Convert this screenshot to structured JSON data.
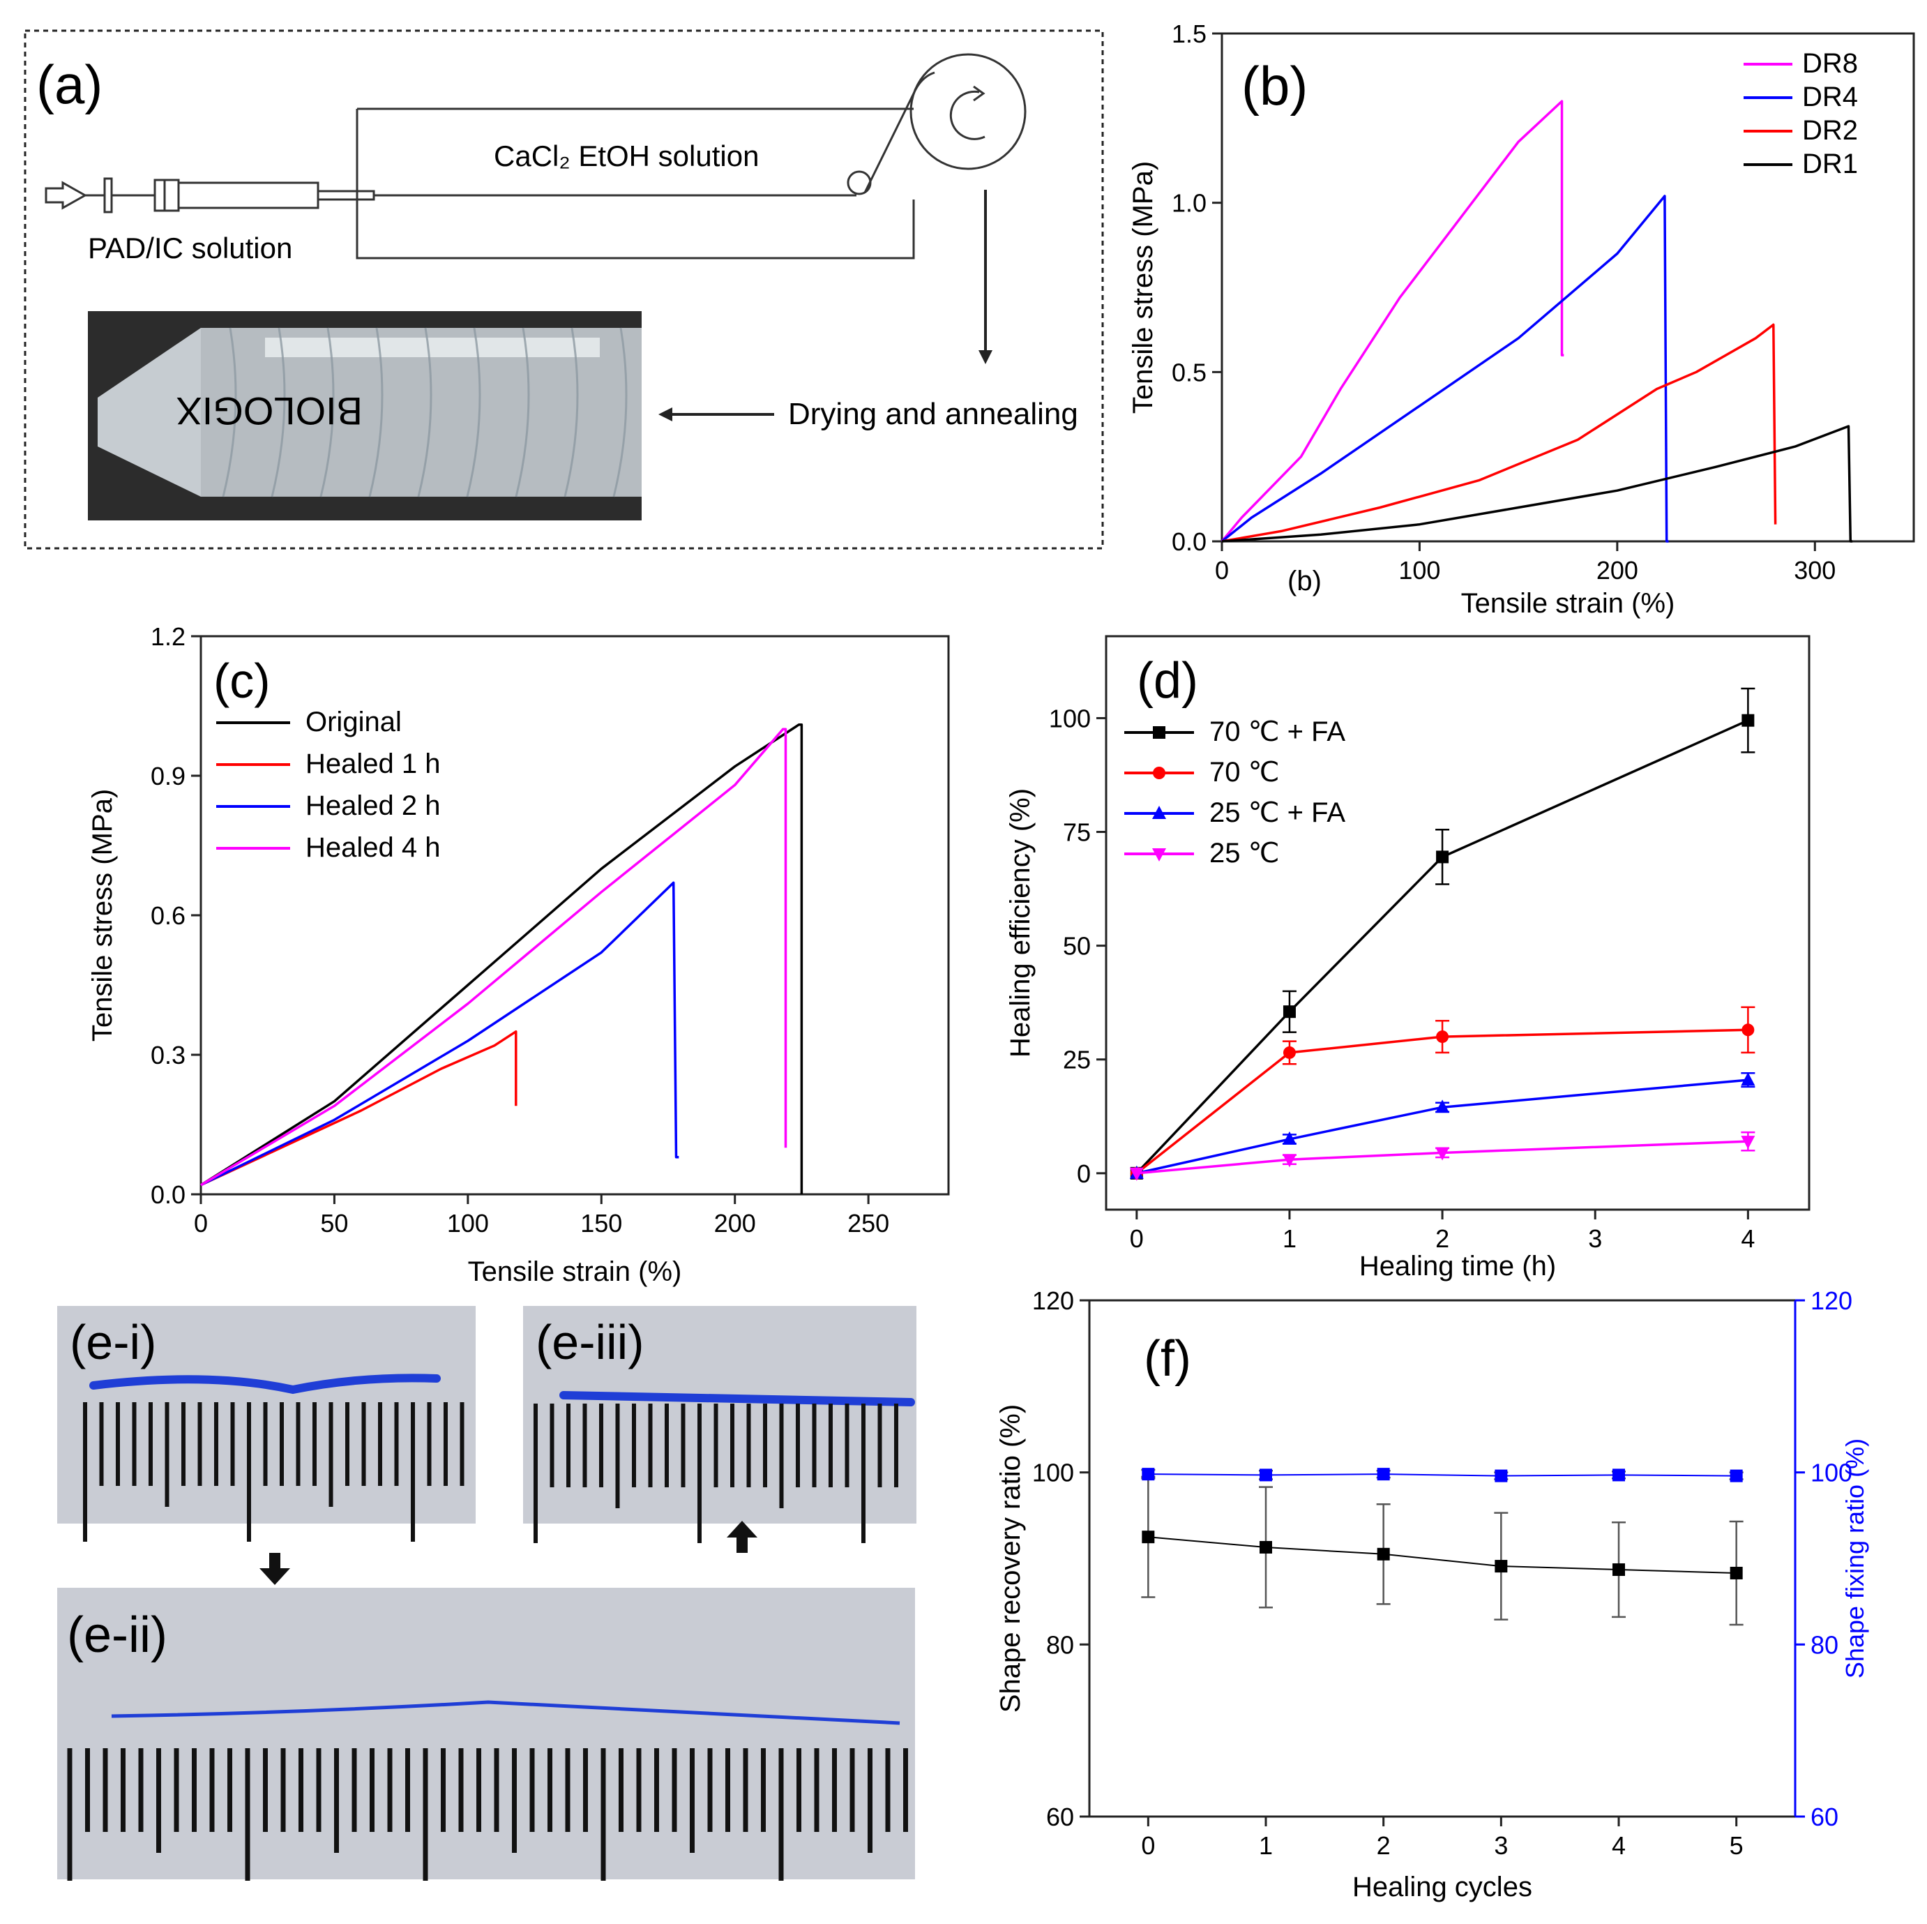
{
  "figure": {
    "background": "#ffffff"
  },
  "panel_a": {
    "label": "(a)",
    "bath_solution": "CaCl₂ EtOH solution",
    "syringe_solution": "PAD/IC solution",
    "step": "Drying and annealing",
    "photo_text": "BIOLOGIX",
    "colors": {
      "line": "#222222",
      "photo_bg": "#2c2c2c",
      "tube": "#cfd6dc"
    }
  },
  "panel_e": {
    "labels": [
      "(e-i)",
      "(e-iii)",
      "(e-ii)"
    ],
    "colors": {
      "fiber": "#1f3ed6",
      "background": "#c9ccd4",
      "ruler": "#111111"
    }
  },
  "chart_data": [
    {
      "id": "b",
      "type": "line",
      "panel_label": "(b)",
      "sublabel": "(b)",
      "xlabel": "Tensile strain (%)",
      "ylabel": "Tensile stress (MPa)",
      "xlim": [
        0,
        350
      ],
      "ylim": [
        0,
        1.5
      ],
      "xticks": [
        0,
        100,
        200,
        300
      ],
      "yticks": [
        0.0,
        0.5,
        1.0,
        1.5
      ],
      "xtick_labels": [
        "0",
        "100",
        "200",
        "300"
      ],
      "ytick_labels": [
        "0.0",
        "0.5",
        "1.0",
        "1.5"
      ],
      "legend_position": "top-right",
      "series": [
        {
          "name": "DR8",
          "color": "#ff00ff",
          "x": [
            0,
            10,
            40,
            60,
            90,
            120,
            150,
            172,
            172,
            173
          ],
          "y": [
            0,
            0.07,
            0.25,
            0.45,
            0.72,
            0.95,
            1.18,
            1.3,
            0.55,
            0.55
          ]
        },
        {
          "name": "DR4",
          "color": "#0000ff",
          "x": [
            0,
            15,
            50,
            100,
            150,
            200,
            224,
            225,
            226
          ],
          "y": [
            0,
            0.07,
            0.2,
            0.4,
            0.6,
            0.85,
            1.02,
            0.0,
            0.0
          ]
        },
        {
          "name": "DR2",
          "color": "#ff0000",
          "x": [
            0,
            30,
            80,
            130,
            180,
            220,
            240,
            270,
            279,
            280
          ],
          "y": [
            0,
            0.03,
            0.1,
            0.18,
            0.3,
            0.45,
            0.5,
            0.6,
            0.64,
            0.05
          ]
        },
        {
          "name": "DR1",
          "color": "#000000",
          "x": [
            0,
            50,
            100,
            150,
            200,
            250,
            290,
            317,
            318,
            319
          ],
          "y": [
            0,
            0.02,
            0.05,
            0.1,
            0.15,
            0.22,
            0.28,
            0.34,
            0.0,
            0.0
          ]
        }
      ]
    },
    {
      "id": "c",
      "type": "line",
      "panel_label": "(c)",
      "xlabel": "Tensile strain (%)",
      "ylabel": "Tensile stress (MPa)",
      "xlim": [
        0,
        280
      ],
      "ylim": [
        0,
        1.2
      ],
      "xticks": [
        0,
        50,
        100,
        150,
        200,
        250
      ],
      "yticks": [
        0.0,
        0.3,
        0.6,
        0.9,
        1.2
      ],
      "xtick_labels": [
        "0",
        "50",
        "100",
        "150",
        "200",
        "250"
      ],
      "ytick_labels": [
        "0.0",
        "0.3",
        "0.6",
        "0.9",
        "1.2"
      ],
      "legend_position": "top-left",
      "series": [
        {
          "name": "Original",
          "color": "#000000",
          "x": [
            0,
            50,
            100,
            150,
            200,
            224,
            225,
            225
          ],
          "y": [
            0.02,
            0.2,
            0.45,
            0.7,
            0.92,
            1.01,
            1.01,
            0.0
          ]
        },
        {
          "name": "Healed 1 h",
          "color": "#ff0000",
          "x": [
            0,
            30,
            60,
            90,
            110,
            118,
            118
          ],
          "y": [
            0.02,
            0.1,
            0.18,
            0.27,
            0.32,
            0.35,
            0.19
          ]
        },
        {
          "name": "Healed 2 h",
          "color": "#0000ff",
          "x": [
            0,
            50,
            100,
            150,
            177,
            178,
            179
          ],
          "y": [
            0.02,
            0.16,
            0.33,
            0.52,
            0.67,
            0.08,
            0.08
          ]
        },
        {
          "name": "Healed 4 h",
          "color": "#ff00ff",
          "x": [
            0,
            50,
            100,
            150,
            200,
            218,
            219,
            219
          ],
          "y": [
            0.02,
            0.19,
            0.41,
            0.65,
            0.88,
            1.0,
            1.0,
            0.1
          ]
        }
      ]
    },
    {
      "id": "d",
      "type": "line",
      "panel_label": "(d)",
      "xlabel": "Healing time (h)",
      "ylabel": "Healing efficiency (%)",
      "xlim": [
        -0.2,
        4.4
      ],
      "ylim": [
        -8,
        118
      ],
      "xticks": [
        0,
        1,
        2,
        3,
        4
      ],
      "yticks": [
        0,
        25,
        50,
        75,
        100
      ],
      "xtick_labels": [
        "0",
        "1",
        "2",
        "3",
        "4"
      ],
      "ytick_labels": [
        "0",
        "25",
        "50",
        "75",
        "100"
      ],
      "legend_position": "top-left",
      "series": [
        {
          "name": "70 ℃ + FA",
          "color": "#000000",
          "marker": "square",
          "x": [
            0,
            1,
            2,
            4
          ],
          "y": [
            0,
            35.5,
            69.5,
            99.5
          ],
          "err": [
            0,
            4.5,
            6,
            7
          ]
        },
        {
          "name": "70 ℃",
          "color": "#ff0000",
          "marker": "circle",
          "x": [
            0,
            1,
            2,
            4
          ],
          "y": [
            0,
            26.5,
            30,
            31.5
          ],
          "err": [
            0,
            2.5,
            3.5,
            5
          ]
        },
        {
          "name": "25 ℃ + FA",
          "color": "#0000ff",
          "marker": "triangle-up",
          "x": [
            0,
            1,
            2,
            4
          ],
          "y": [
            0,
            7.5,
            14.5,
            20.5
          ],
          "err": [
            0,
            1,
            1,
            1.5
          ]
        },
        {
          "name": "25 ℃",
          "color": "#ff00ff",
          "marker": "triangle-down",
          "x": [
            0,
            1,
            2,
            4
          ],
          "y": [
            0,
            3,
            4.5,
            7
          ],
          "err": [
            0,
            1,
            1,
            2
          ]
        }
      ]
    },
    {
      "id": "f",
      "type": "line",
      "panel_label": "(f)",
      "xlabel": "Healing cycles",
      "ylabel": "Shape recovery ratio (%)",
      "ylabel_right": "Shape fixing ratio (%)",
      "xlim": [
        -0.5,
        5.5
      ],
      "ylim": [
        60,
        120
      ],
      "xticks": [
        0,
        1,
        2,
        3,
        4,
        5
      ],
      "yticks": [
        60,
        80,
        100,
        120
      ],
      "xtick_labels": [
        "0",
        "1",
        "2",
        "3",
        "4",
        "5"
      ],
      "ytick_labels": [
        "60",
        "80",
        "100",
        "120"
      ],
      "right_axis_color": "#0000ff",
      "series": [
        {
          "name": "Shape recovery ratio",
          "axis": "left",
          "color": "#000000",
          "marker": "square",
          "x": [
            0,
            1,
            2,
            3,
            4,
            5
          ],
          "y": [
            92.5,
            91.3,
            90.5,
            89.1,
            88.7,
            88.3
          ],
          "err": [
            7,
            7,
            5.8,
            6.2,
            5.5,
            6
          ]
        },
        {
          "name": "Shape fixing ratio",
          "axis": "right",
          "color": "#0000ff",
          "marker": "square",
          "x": [
            0,
            1,
            2,
            3,
            4,
            5
          ],
          "y": [
            99.8,
            99.7,
            99.8,
            99.6,
            99.7,
            99.6
          ],
          "err": [
            0.5,
            0.5,
            0.4,
            0.4,
            0.4,
            0.4
          ]
        }
      ]
    }
  ]
}
